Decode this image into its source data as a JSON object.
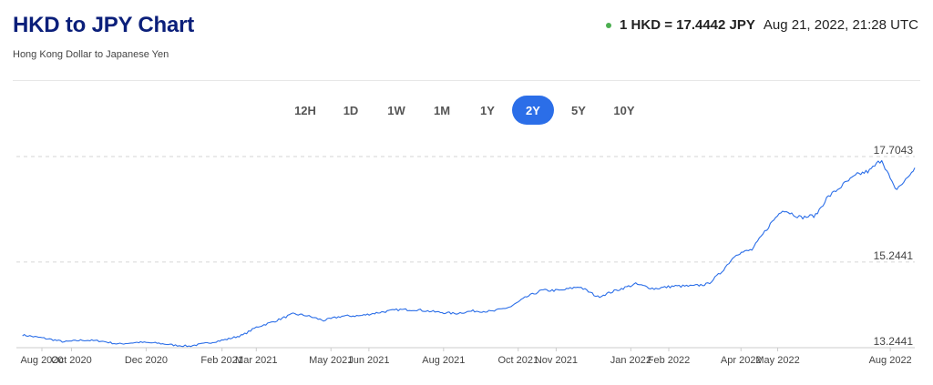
{
  "header": {
    "title": "HKD to JPY Chart",
    "subtitle": "Hong Kong Dollar to Japanese Yen",
    "rate_value": "1 HKD = 17.4442 JPY",
    "rate_time": "Aug 21, 2022, 21:28 UTC"
  },
  "ranges": [
    {
      "label": "12H",
      "active": false
    },
    {
      "label": "1D",
      "active": false
    },
    {
      "label": "1W",
      "active": false
    },
    {
      "label": "1M",
      "active": false
    },
    {
      "label": "1Y",
      "active": false
    },
    {
      "label": "2Y",
      "active": true
    },
    {
      "label": "5Y",
      "active": false
    },
    {
      "label": "10Y",
      "active": false
    }
  ],
  "colors": {
    "line": "#2b6ee8",
    "active": "#2b6ee8",
    "title": "#0b1f7a",
    "live_dot": "#4caf50"
  },
  "chart_data": {
    "type": "line",
    "title": "",
    "xlabel": "",
    "ylabel": "",
    "y_ticks": [
      13.2441,
      15.2441,
      17.7043
    ],
    "x_ticks": [
      "Aug 2020",
      "Oct 2020",
      "Dec 2020",
      "Feb 2021",
      "Mar 2021",
      "May 2021",
      "Jun 2021",
      "Aug 2021",
      "Oct 2021",
      "Nov 2021",
      "Jan 2022",
      "Feb 2022",
      "Apr 2022",
      "May 2022",
      "Aug 2022"
    ],
    "ylim": [
      13.2441,
      17.7043
    ],
    "grid": "horizontal dashed",
    "series": [
      {
        "values": [
          [
            "2020-08-22",
            13.54
          ],
          [
            "2020-09-10",
            13.46
          ],
          [
            "2020-09-25",
            13.38
          ],
          [
            "2020-10-10",
            13.42
          ],
          [
            "2020-10-25",
            13.4
          ],
          [
            "2020-11-08",
            13.33
          ],
          [
            "2020-11-25",
            13.37
          ],
          [
            "2020-12-10",
            13.35
          ],
          [
            "2020-12-25",
            13.3
          ],
          [
            "2021-01-05",
            13.28
          ],
          [
            "2021-01-20",
            13.35
          ],
          [
            "2021-02-05",
            13.44
          ],
          [
            "2021-02-18",
            13.54
          ],
          [
            "2021-03-01",
            13.72
          ],
          [
            "2021-03-15",
            13.85
          ],
          [
            "2021-03-31",
            14.03
          ],
          [
            "2021-04-10",
            14.0
          ],
          [
            "2021-04-25",
            13.88
          ],
          [
            "2021-05-10",
            13.98
          ],
          [
            "2021-05-25",
            13.99
          ],
          [
            "2021-06-10",
            14.07
          ],
          [
            "2021-06-25",
            14.13
          ],
          [
            "2021-07-10",
            14.13
          ],
          [
            "2021-07-25",
            14.08
          ],
          [
            "2021-08-10",
            14.04
          ],
          [
            "2021-08-25",
            14.1
          ],
          [
            "2021-09-10",
            14.09
          ],
          [
            "2021-09-25",
            14.2
          ],
          [
            "2021-10-08",
            14.43
          ],
          [
            "2021-10-20",
            14.58
          ],
          [
            "2021-11-05",
            14.58
          ],
          [
            "2021-11-20",
            14.67
          ],
          [
            "2021-12-05",
            14.43
          ],
          [
            "2021-12-20",
            14.58
          ],
          [
            "2022-01-05",
            14.73
          ],
          [
            "2022-01-20",
            14.62
          ],
          [
            "2022-02-05",
            14.68
          ],
          [
            "2022-02-20",
            14.68
          ],
          [
            "2022-03-05",
            14.73
          ],
          [
            "2022-03-15",
            14.98
          ],
          [
            "2022-03-28",
            15.43
          ],
          [
            "2022-04-10",
            15.53
          ],
          [
            "2022-04-25",
            16.13
          ],
          [
            "2022-05-05",
            16.47
          ],
          [
            "2022-05-20",
            16.28
          ],
          [
            "2022-06-01",
            16.33
          ],
          [
            "2022-06-10",
            16.73
          ],
          [
            "2022-06-25",
            17.08
          ],
          [
            "2022-07-05",
            17.28
          ],
          [
            "2022-07-15",
            17.37
          ],
          [
            "2022-07-25",
            17.64
          ],
          [
            "2022-08-01",
            17.18
          ],
          [
            "2022-08-05",
            16.93
          ],
          [
            "2022-08-12",
            17.1
          ],
          [
            "2022-08-17",
            17.28
          ],
          [
            "2022-08-21",
            17.44
          ]
        ]
      }
    ]
  }
}
